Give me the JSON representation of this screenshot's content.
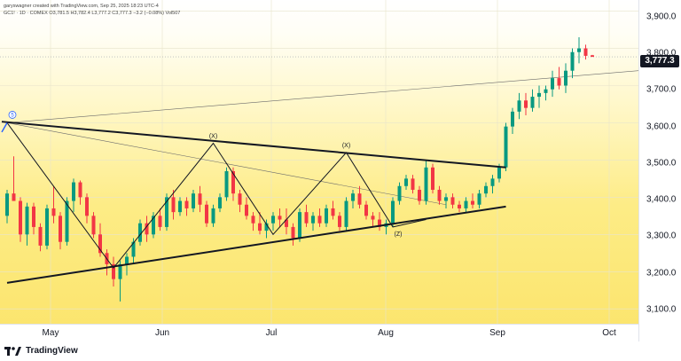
{
  "header": {
    "credit": "garyswagner created with TradingView.com, Sep 25, 2025 18:23 UTC-4",
    "symbol_line": "GC1! · 1D · COMEX  O3,781.5  H3,782.4  L3,777.2  C3,777.3  −3.2 (−0.08%)  Vol507"
  },
  "y_axis": {
    "labels": [
      "3,900.0",
      "3,800.0",
      "3,700.0",
      "3,600.0",
      "3,500.0",
      "3,400.0",
      "3,300.0",
      "3,200.0",
      "3,100.0"
    ]
  },
  "x_axis": {
    "labels": [
      "May",
      "Jun",
      "Jul",
      "Aug",
      "Sep",
      "Oct"
    ]
  },
  "price_tag": "3,777.3",
  "annotations": {
    "wave5": "5",
    "x1": "(X)",
    "x2": "(X)",
    "z": "(Z)"
  },
  "footer": {
    "logo_text": "TradingView"
  },
  "colors": {
    "up": "#089981",
    "down": "#f23645",
    "line": "#131722"
  },
  "chart_data": {
    "type": "candlestick",
    "ylim": [
      3060,
      3930
    ],
    "yticks": [
      3100,
      3200,
      3300,
      3400,
      3500,
      3600,
      3700,
      3800,
      3900
    ],
    "x_labels": [
      "May",
      "Jun",
      "Jul",
      "Aug",
      "Sep",
      "Oct"
    ],
    "last_price": 3777.3,
    "candles": [
      [
        3350,
        3420,
        3330,
        3410
      ],
      [
        3410,
        3510,
        3390,
        3390
      ],
      [
        3390,
        3400,
        3280,
        3300
      ],
      [
        3300,
        3385,
        3270,
        3375
      ],
      [
        3375,
        3385,
        3300,
        3320
      ],
      [
        3320,
        3330,
        3255,
        3270
      ],
      [
        3270,
        3380,
        3260,
        3370
      ],
      [
        3370,
        3430,
        3330,
        3350
      ],
      [
        3350,
        3360,
        3260,
        3280
      ],
      [
        3280,
        3400,
        3270,
        3390
      ],
      [
        3390,
        3450,
        3360,
        3440
      ],
      [
        3440,
        3445,
        3380,
        3400
      ],
      [
        3400,
        3410,
        3330,
        3350
      ],
      [
        3350,
        3360,
        3290,
        3300
      ],
      [
        3300,
        3330,
        3240,
        3250
      ],
      [
        3250,
        3260,
        3190,
        3220
      ],
      [
        3220,
        3240,
        3160,
        3180
      ],
      [
        3180,
        3230,
        3120,
        3220
      ],
      [
        3220,
        3250,
        3190,
        3240
      ],
      [
        3240,
        3290,
        3220,
        3280
      ],
      [
        3280,
        3340,
        3270,
        3330
      ],
      [
        3330,
        3350,
        3280,
        3300
      ],
      [
        3300,
        3360,
        3290,
        3350
      ],
      [
        3350,
        3370,
        3310,
        3320
      ],
      [
        3320,
        3410,
        3310,
        3400
      ],
      [
        3400,
        3420,
        3340,
        3360
      ],
      [
        3360,
        3400,
        3350,
        3390
      ],
      [
        3390,
        3400,
        3350,
        3370
      ],
      [
        3370,
        3420,
        3360,
        3410
      ],
      [
        3410,
        3430,
        3360,
        3380
      ],
      [
        3380,
        3390,
        3320,
        3330
      ],
      [
        3330,
        3380,
        3320,
        3370
      ],
      [
        3370,
        3410,
        3360,
        3400
      ],
      [
        3400,
        3480,
        3390,
        3470
      ],
      [
        3470,
        3480,
        3390,
        3410
      ],
      [
        3410,
        3420,
        3360,
        3380
      ],
      [
        3380,
        3400,
        3340,
        3350
      ],
      [
        3350,
        3360,
        3310,
        3330
      ],
      [
        3330,
        3360,
        3300,
        3310
      ],
      [
        3310,
        3340,
        3290,
        3330
      ],
      [
        3330,
        3360,
        3310,
        3350
      ],
      [
        3350,
        3370,
        3320,
        3340
      ],
      [
        3340,
        3370,
        3300,
        3320
      ],
      [
        3320,
        3330,
        3270,
        3290
      ],
      [
        3290,
        3370,
        3280,
        3360
      ],
      [
        3360,
        3380,
        3320,
        3330
      ],
      [
        3330,
        3360,
        3310,
        3350
      ],
      [
        3350,
        3370,
        3320,
        3330
      ],
      [
        3330,
        3380,
        3320,
        3370
      ],
      [
        3370,
        3390,
        3340,
        3350
      ],
      [
        3350,
        3360,
        3310,
        3320
      ],
      [
        3320,
        3400,
        3310,
        3390
      ],
      [
        3390,
        3420,
        3370,
        3410
      ],
      [
        3410,
        3430,
        3370,
        3380
      ],
      [
        3380,
        3390,
        3340,
        3350
      ],
      [
        3350,
        3360,
        3320,
        3340
      ],
      [
        3340,
        3360,
        3310,
        3320
      ],
      [
        3320,
        3340,
        3300,
        3330
      ],
      [
        3330,
        3400,
        3320,
        3390
      ],
      [
        3390,
        3440,
        3380,
        3430
      ],
      [
        3430,
        3460,
        3420,
        3450
      ],
      [
        3450,
        3460,
        3410,
        3420
      ],
      [
        3420,
        3430,
        3380,
        3390
      ],
      [
        3390,
        3500,
        3380,
        3480
      ],
      [
        3480,
        3490,
        3410,
        3420
      ],
      [
        3420,
        3430,
        3380,
        3390
      ],
      [
        3390,
        3410,
        3370,
        3400
      ],
      [
        3400,
        3410,
        3370,
        3380
      ],
      [
        3380,
        3390,
        3360,
        3370
      ],
      [
        3370,
        3400,
        3360,
        3390
      ],
      [
        3390,
        3410,
        3370,
        3380
      ],
      [
        3380,
        3420,
        3370,
        3410
      ],
      [
        3410,
        3440,
        3400,
        3430
      ],
      [
        3430,
        3460,
        3410,
        3450
      ],
      [
        3450,
        3490,
        3440,
        3480
      ],
      [
        3480,
        3600,
        3470,
        3590
      ],
      [
        3590,
        3640,
        3570,
        3630
      ],
      [
        3630,
        3680,
        3610,
        3660
      ],
      [
        3660,
        3680,
        3620,
        3640
      ],
      [
        3640,
        3690,
        3630,
        3670
      ],
      [
        3670,
        3700,
        3640,
        3680
      ],
      [
        3680,
        3700,
        3660,
        3690
      ],
      [
        3690,
        3740,
        3670,
        3720
      ],
      [
        3720,
        3750,
        3690,
        3700
      ],
      [
        3700,
        3760,
        3680,
        3740
      ],
      [
        3740,
        3800,
        3720,
        3790
      ],
      [
        3790,
        3830,
        3760,
        3800
      ],
      [
        3800,
        3810,
        3770,
        3780
      ],
      [
        3781.5,
        3782.4,
        3777.2,
        3777.3
      ]
    ],
    "trendlines": [
      {
        "from": [
          0,
          3600
        ],
        "to": [
          88,
          3480
        ]
      },
      {
        "from": [
          0,
          3170
        ],
        "to": [
          88,
          3375
        ]
      }
    ]
  }
}
